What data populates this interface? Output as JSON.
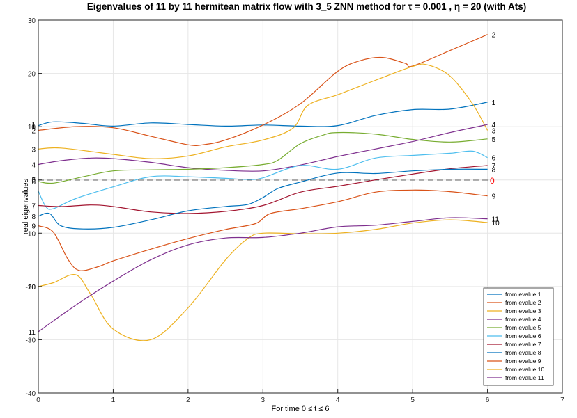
{
  "chart_data": {
    "type": "line",
    "title": "Eigenvalues of 11 by 11 hermitean matrix flow with 3_5 ZNN method for τ = 0.001 , η = 20   (with  Ats)",
    "xlabel": "For time 0 ≤ t ≤ 6",
    "ylabel": "real eigenvalues",
    "xlim": [
      0,
      7
    ],
    "ylim": [
      -40,
      30
    ],
    "xticks": [
      "0",
      "1",
      "2",
      "3",
      "4",
      "5",
      "6",
      "7"
    ],
    "yticks": [
      "-40",
      "-30",
      "-20",
      "-10",
      "0",
      "10",
      "20",
      "30"
    ],
    "grid": true,
    "legend_position": "bottom-right",
    "zero_line_label": "0",
    "zero_line_color": "#ff0000",
    "colors": [
      "#0072BD",
      "#D95319",
      "#EDB120",
      "#7E2F8E",
      "#77AC30",
      "#4DBEEE",
      "#A2142F",
      "#0072BD",
      "#D95319",
      "#EDB120",
      "#7E2F8E"
    ],
    "start_labels": [
      {
        "text": "1",
        "y": 10.5
      },
      {
        "text": "1",
        "y": 10.2
      },
      {
        "text": "2",
        "y": 9.3
      },
      {
        "text": "3",
        "y": 5.8
      },
      {
        "text": "4",
        "y": 2.9
      },
      {
        "text": "5",
        "y": 0.1
      },
      {
        "text": "6",
        "y": -0.3
      },
      {
        "text": "7",
        "y": -4.8
      },
      {
        "text": "8",
        "y": -6.8
      },
      {
        "text": "9",
        "y": -8.6
      },
      {
        "text": "10",
        "y": -20.0
      },
      {
        "text": "-20",
        "y": -20.0
      },
      {
        "text": "11",
        "y": -28.5
      }
    ],
    "series": [
      {
        "name": "from evalue 1",
        "label": "1",
        "x": [
          0,
          0.2,
          0.6,
          1.0,
          1.5,
          2.0,
          2.5,
          3.0,
          3.5,
          4.0,
          4.5,
          5.0,
          5.5,
          6.0
        ],
        "y": [
          10.2,
          10.9,
          10.6,
          10.1,
          10.7,
          10.4,
          10.1,
          10.3,
          10.1,
          10.2,
          12.1,
          13.2,
          13.3,
          14.6
        ]
      },
      {
        "name": "from evalue 2",
        "label": "2",
        "x": [
          0,
          0.5,
          1.0,
          1.5,
          2.0,
          2.2,
          2.5,
          3.0,
          3.5,
          4.0,
          4.3,
          4.6,
          4.9,
          5.0,
          5.5,
          6.0
        ],
        "y": [
          9.3,
          10.0,
          9.8,
          8.2,
          6.6,
          6.6,
          7.5,
          10.3,
          14.3,
          20.4,
          22.4,
          23.0,
          21.9,
          21.4,
          24.3,
          27.3
        ]
      },
      {
        "name": "from evalue 3",
        "label": "3",
        "x": [
          0,
          0.3,
          1.0,
          1.5,
          2.0,
          2.5,
          3.0,
          3.4,
          3.6,
          4.0,
          4.5,
          5.0,
          5.2,
          5.5,
          5.8,
          6.0
        ],
        "y": [
          5.8,
          6.0,
          4.8,
          4.0,
          4.5,
          6.2,
          7.5,
          9.7,
          14.0,
          16.0,
          18.7,
          21.3,
          21.6,
          19.5,
          14.3,
          9.3
        ]
      },
      {
        "name": "from evalue 4",
        "label": "4",
        "x": [
          0,
          0.3,
          0.7,
          1.0,
          1.5,
          2.0,
          2.5,
          3.0,
          3.5,
          4.0,
          4.5,
          5.0,
          5.5,
          6.0
        ],
        "y": [
          2.9,
          3.6,
          4.1,
          4.0,
          3.3,
          2.3,
          1.8,
          1.7,
          2.8,
          4.4,
          5.8,
          7.2,
          8.9,
          10.4
        ]
      },
      {
        "name": "from evalue 5",
        "label": "5",
        "x": [
          0,
          0.2,
          0.6,
          1.0,
          1.5,
          2.0,
          2.5,
          3.0,
          3.2,
          3.5,
          3.8,
          4.0,
          4.5,
          5.0,
          5.5,
          6.0
        ],
        "y": [
          -0.3,
          -0.6,
          0.6,
          1.7,
          1.9,
          2.0,
          2.3,
          2.9,
          3.7,
          6.8,
          8.4,
          8.9,
          8.6,
          7.6,
          7.1,
          7.7
        ]
      },
      {
        "name": "from evalue 6",
        "label": "6",
        "x": [
          0,
          0.1,
          0.2,
          0.5,
          1.0,
          1.5,
          2.0,
          2.5,
          2.8,
          3.0,
          3.5,
          4.0,
          4.5,
          5.0,
          5.5,
          5.8,
          6.0
        ],
        "y": [
          -2.1,
          -5.0,
          -5.4,
          -3.5,
          -1.3,
          0.6,
          0.6,
          0.3,
          0.1,
          0.4,
          2.7,
          2.0,
          4.1,
          4.6,
          5.0,
          5.4,
          4.2
        ]
      },
      {
        "name": "from evalue 7",
        "label": "7",
        "x": [
          0,
          0.3,
          0.7,
          1.0,
          1.5,
          2.0,
          2.5,
          3.0,
          3.5,
          4.0,
          4.5,
          5.0,
          5.5,
          6.0
        ],
        "y": [
          -4.8,
          -5.0,
          -4.7,
          -5.0,
          -6.0,
          -6.3,
          -5.9,
          -4.8,
          -2.3,
          -1.2,
          0.0,
          1.1,
          2.1,
          2.7
        ]
      },
      {
        "name": "from evalue 8",
        "label": "8",
        "x": [
          0,
          0.15,
          0.3,
          0.6,
          1.0,
          1.5,
          2.0,
          2.5,
          2.8,
          3.0,
          3.2,
          3.5,
          4.0,
          4.5,
          5.0,
          5.5,
          6.0
        ],
        "y": [
          -6.8,
          -6.3,
          -8.6,
          -9.2,
          -8.9,
          -7.5,
          -5.8,
          -5.0,
          -4.6,
          -3.3,
          -1.6,
          -0.4,
          1.3,
          1.2,
          1.7,
          2.0,
          2.0
        ]
      },
      {
        "name": "from evalue 9",
        "label": "9",
        "x": [
          0,
          0.2,
          0.4,
          0.55,
          0.8,
          1.0,
          1.5,
          2.0,
          2.5,
          2.9,
          3.1,
          3.5,
          4.0,
          4.5,
          5.0,
          5.5,
          6.0
        ],
        "y": [
          -8.6,
          -9.8,
          -15.0,
          -17.0,
          -16.3,
          -15.2,
          -13.0,
          -11.0,
          -9.3,
          -8.2,
          -6.3,
          -5.4,
          -4.1,
          -2.3,
          -1.9,
          -2.2,
          -3.0
        ]
      },
      {
        "name": "from evalue 10",
        "label": "10",
        "x": [
          0,
          0.2,
          0.5,
          0.7,
          1.0,
          1.5,
          2.0,
          2.5,
          2.8,
          3.0,
          3.5,
          4.0,
          4.5,
          5.0,
          5.5,
          6.0
        ],
        "y": [
          -20.0,
          -19.3,
          -17.8,
          -21.5,
          -28.0,
          -30.0,
          -24.0,
          -15.0,
          -11.0,
          -10.0,
          -10.1,
          -10.0,
          -9.3,
          -8.1,
          -7.5,
          -8.0
        ]
      },
      {
        "name": "from evalue 11",
        "label": "11",
        "x": [
          0,
          0.5,
          1.0,
          1.5,
          2.0,
          2.5,
          3.0,
          3.5,
          4.0,
          4.5,
          5.0,
          5.5,
          6.0
        ],
        "y": [
          -28.5,
          -23.5,
          -19.0,
          -15.0,
          -12.2,
          -10.9,
          -10.8,
          -10.0,
          -8.8,
          -8.5,
          -7.8,
          -7.1,
          -7.3
        ]
      }
    ]
  }
}
